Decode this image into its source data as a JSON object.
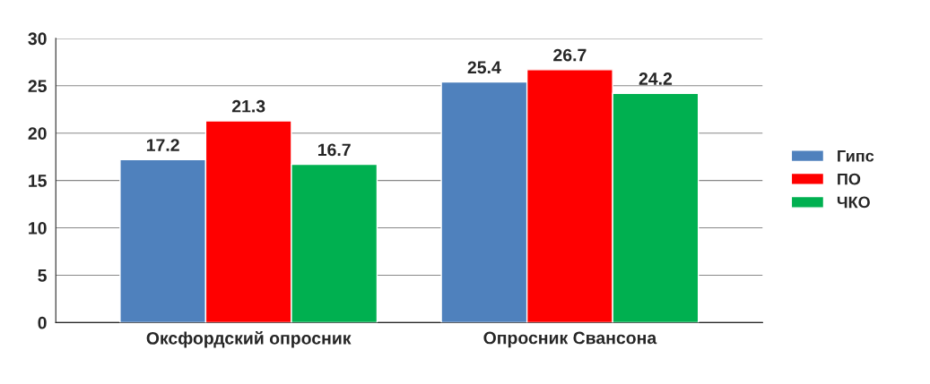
{
  "chart_data": {
    "type": "bar",
    "categories": [
      "Оксфордский опросник",
      "Опросник Свансона"
    ],
    "series": [
      {
        "name": "Гипс",
        "color": "#4f81bd",
        "values": [
          17.2,
          25.4
        ]
      },
      {
        "name": "ПО",
        "color": "#ff0000",
        "values": [
          21.3,
          26.7
        ]
      },
      {
        "name": "ЧКО",
        "color": "#00b050",
        "values": [
          16.7,
          24.2
        ]
      }
    ],
    "ylim": [
      0,
      30
    ],
    "yticks": [
      0,
      5,
      10,
      15,
      20,
      25,
      30
    ],
    "grid": "y",
    "legend": "right",
    "data_labels": true
  }
}
